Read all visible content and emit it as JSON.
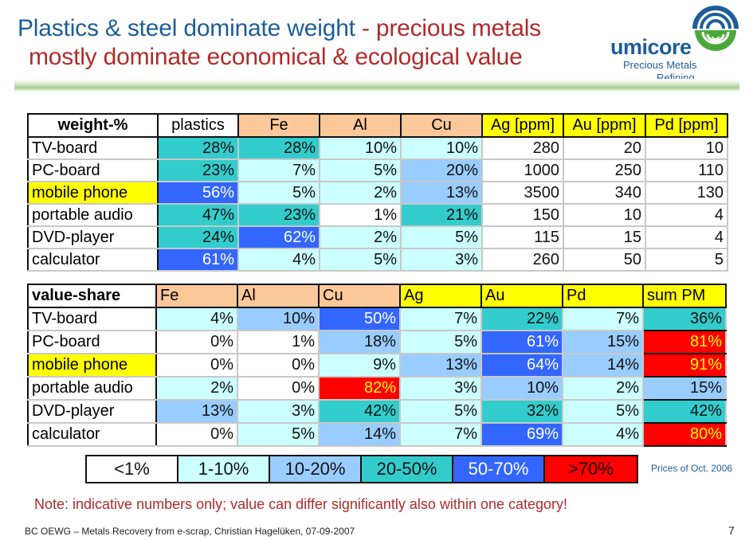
{
  "slide": {
    "title_line1_blue": "Plastics & steel dominate weight",
    "title_line1_red": " - precious metals",
    "title_line2": "mostly dominate economical & ecological value",
    "logo": {
      "name": "umicore",
      "sub1": "Precious Metals",
      "sub2": "Refining",
      "icon": "umicore-swirl-logo-icon"
    }
  },
  "weight_table": {
    "header": [
      "weight-%",
      "plastics",
      "Fe",
      "Al",
      "Cu",
      "Ag [ppm]",
      "Au [ppm]",
      "Pd [ppm]"
    ],
    "rows": [
      {
        "label": "TV-board",
        "highlight": false,
        "cells": [
          {
            "v": "28%",
            "c": 3
          },
          {
            "v": "28%",
            "c": 3
          },
          {
            "v": "10%",
            "c": 1
          },
          {
            "v": "10%",
            "c": 1
          },
          {
            "v": "280"
          },
          {
            "v": "20"
          },
          {
            "v": "10"
          }
        ]
      },
      {
        "label": "PC-board",
        "highlight": false,
        "cells": [
          {
            "v": "23%",
            "c": 3
          },
          {
            "v": "7%",
            "c": 1
          },
          {
            "v": "5%",
            "c": 1
          },
          {
            "v": "20%",
            "c": 2
          },
          {
            "v": "1000"
          },
          {
            "v": "250"
          },
          {
            "v": "110"
          }
        ]
      },
      {
        "label": "mobile phone",
        "highlight": true,
        "cells": [
          {
            "v": "56%",
            "c": 4
          },
          {
            "v": "5%",
            "c": 1
          },
          {
            "v": "2%",
            "c": 1
          },
          {
            "v": "13%",
            "c": 2
          },
          {
            "v": "3500"
          },
          {
            "v": "340"
          },
          {
            "v": "130"
          }
        ]
      },
      {
        "label": "portable audio",
        "highlight": false,
        "cells": [
          {
            "v": "47%",
            "c": 3
          },
          {
            "v": "23%",
            "c": 3
          },
          {
            "v": "1%",
            "c": 0
          },
          {
            "v": "21%",
            "c": 3
          },
          {
            "v": "150"
          },
          {
            "v": "10"
          },
          {
            "v": "4"
          }
        ]
      },
      {
        "label": "DVD-player",
        "highlight": false,
        "cells": [
          {
            "v": "24%",
            "c": 3
          },
          {
            "v": "62%",
            "c": 4
          },
          {
            "v": "2%",
            "c": 1
          },
          {
            "v": "5%",
            "c": 1
          },
          {
            "v": "115"
          },
          {
            "v": "15"
          },
          {
            "v": "4"
          }
        ]
      },
      {
        "label": "calculator",
        "highlight": false,
        "cells": [
          {
            "v": "61%",
            "c": 4
          },
          {
            "v": "4%",
            "c": 1
          },
          {
            "v": "5%",
            "c": 1
          },
          {
            "v": "3%",
            "c": 1
          },
          {
            "v": "260"
          },
          {
            "v": "50"
          },
          {
            "v": "5"
          }
        ]
      }
    ]
  },
  "value_table": {
    "header": [
      "value-share",
      "Fe",
      "Al",
      "Cu",
      "Ag",
      "Au",
      "Pd",
      "sum PM"
    ],
    "rows": [
      {
        "label": "TV-board",
        "highlight": false,
        "cells": [
          {
            "v": "4%",
            "c": 1
          },
          {
            "v": "10%",
            "c": 2
          },
          {
            "v": "50%",
            "c": 4
          },
          {
            "v": "7%",
            "c": 1
          },
          {
            "v": "22%",
            "c": 3
          },
          {
            "v": "7%",
            "c": 1
          },
          {
            "v": "36%",
            "c": 3
          }
        ]
      },
      {
        "label": "PC-board",
        "highlight": false,
        "cells": [
          {
            "v": "0%",
            "c": 0
          },
          {
            "v": "1%",
            "c": 0
          },
          {
            "v": "18%",
            "c": 2
          },
          {
            "v": "5%",
            "c": 1
          },
          {
            "v": "61%",
            "c": 4
          },
          {
            "v": "15%",
            "c": 2
          },
          {
            "v": "81%",
            "c": 5
          }
        ]
      },
      {
        "label": "mobile phone",
        "highlight": true,
        "cells": [
          {
            "v": "0%",
            "c": 0
          },
          {
            "v": "0%",
            "c": 0
          },
          {
            "v": "9%",
            "c": 1
          },
          {
            "v": "13%",
            "c": 2
          },
          {
            "v": "64%",
            "c": 4
          },
          {
            "v": "14%",
            "c": 2
          },
          {
            "v": "91%",
            "c": 5
          }
        ]
      },
      {
        "label": "portable audio",
        "highlight": false,
        "cells": [
          {
            "v": "2%",
            "c": 1
          },
          {
            "v": "0%",
            "c": 0
          },
          {
            "v": "82%",
            "c": 5
          },
          {
            "v": "3%",
            "c": 1
          },
          {
            "v": "10%",
            "c": 2
          },
          {
            "v": "2%",
            "c": 1
          },
          {
            "v": "15%",
            "c": 2
          }
        ]
      },
      {
        "label": "DVD-player",
        "highlight": false,
        "cells": [
          {
            "v": "13%",
            "c": 2
          },
          {
            "v": "3%",
            "c": 1
          },
          {
            "v": "42%",
            "c": 3
          },
          {
            "v": "5%",
            "c": 1
          },
          {
            "v": "32%",
            "c": 3
          },
          {
            "v": "5%",
            "c": 1
          },
          {
            "v": "42%",
            "c": 3
          }
        ]
      },
      {
        "label": "calculator",
        "highlight": false,
        "cells": [
          {
            "v": "0%",
            "c": 0
          },
          {
            "v": "5%",
            "c": 1
          },
          {
            "v": "14%",
            "c": 2
          },
          {
            "v": "7%",
            "c": 1
          },
          {
            "v": "69%",
            "c": 4
          },
          {
            "v": "4%",
            "c": 1
          },
          {
            "v": "80%",
            "c": 5
          }
        ]
      }
    ]
  },
  "legend": {
    "items": [
      "<1%",
      "1-10%",
      "10-20%",
      "20-50%",
      "50-70%",
      ">70%"
    ],
    "colors": [
      "#ffffff",
      "#ccffff",
      "#99ccff",
      "#33cccc",
      "#3366ff",
      "#ff0000"
    ],
    "prices_note": "Prices of Oct. 2006"
  },
  "note": "Note: indicative numbers only; value can differ significantly also within one category!",
  "footer": {
    "text": "BC OEWG – Metals Recovery from e-scrap, Christian Hagelüken, 07-09-2007",
    "page": "7"
  }
}
